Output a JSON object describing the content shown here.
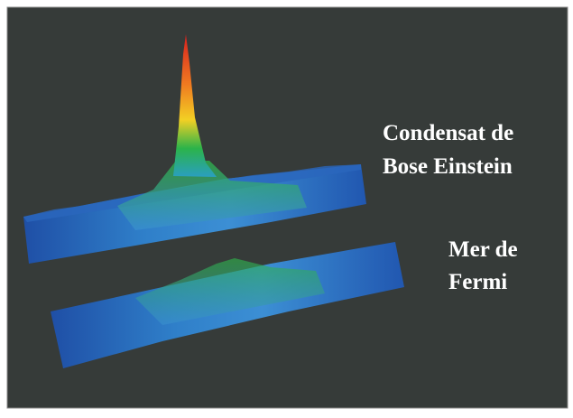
{
  "labels": {
    "condensate": [
      "Condensat de",
      "Bose Einstein"
    ],
    "fermi": [
      "Mer de",
      "Fermi"
    ]
  }
}
